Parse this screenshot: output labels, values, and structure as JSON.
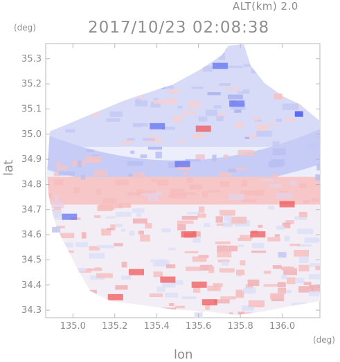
{
  "header": {
    "altitude": "ALT(km) 2.0",
    "timestamp": "2017/10/23 02:08:38"
  },
  "axes": {
    "x_label": "lon",
    "y_label": "lat",
    "x_unit": "(deg)",
    "y_unit": "(deg)",
    "x_ticks": [
      "135.0",
      "135.2",
      "135.4",
      "135.6",
      "135.8",
      "136.0"
    ],
    "y_ticks": [
      "35.3",
      "35.2",
      "35.1",
      "35.0",
      "34.9",
      "34.8",
      "34.7",
      "34.6",
      "34.5",
      "34.4",
      "34.3"
    ]
  },
  "map": {
    "lon_range": [
      134.87,
      136.18
    ],
    "lat_range": [
      34.27,
      35.36
    ],
    "radar_center": [
      135.52,
      34.82
    ],
    "colors": {
      "approaching": "#5b6cf0",
      "receding": "#f05050",
      "light_blue": "#c6ccf5",
      "light_red": "#f7c6c6",
      "frame": "#b8b8b8"
    }
  }
}
